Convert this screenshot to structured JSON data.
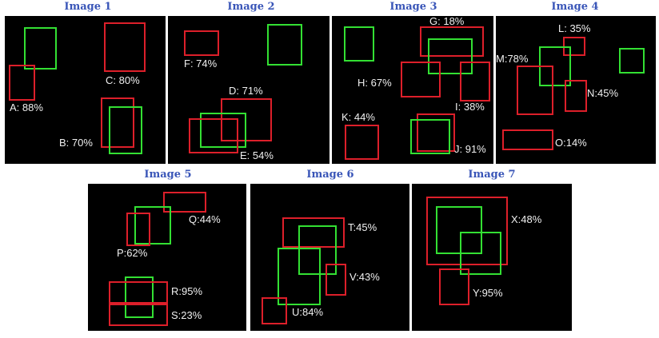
{
  "colors": {
    "ground_truth": "#33e033",
    "prediction": "#dd1f2a",
    "title": "#3a56b8"
  },
  "panels": [
    {
      "title": "Image 1",
      "labels": [
        "A: 88%",
        "B: 70%",
        "C: 80%"
      ]
    },
    {
      "title": "Image 2",
      "labels": [
        "F: 74%",
        "D: 71%",
        "E: 54%"
      ]
    },
    {
      "title": "Image 3",
      "labels": [
        "G: 18%",
        "H: 67%",
        "I: 38%",
        "K: 44%",
        "J: 91%"
      ]
    },
    {
      "title": "Image 4",
      "labels": [
        "L: 35%",
        "M:78%",
        "N:45%",
        "O:14%"
      ]
    },
    {
      "title": "Image 5",
      "labels": [
        "Q:44%",
        "P:62%",
        "R:95%",
        "S:23%"
      ]
    },
    {
      "title": "Image 6",
      "labels": [
        "T:45%",
        "V:43%",
        "U:84%"
      ]
    },
    {
      "title": "Image 7",
      "labels": [
        "X:48%",
        "Y:95%"
      ]
    }
  ]
}
